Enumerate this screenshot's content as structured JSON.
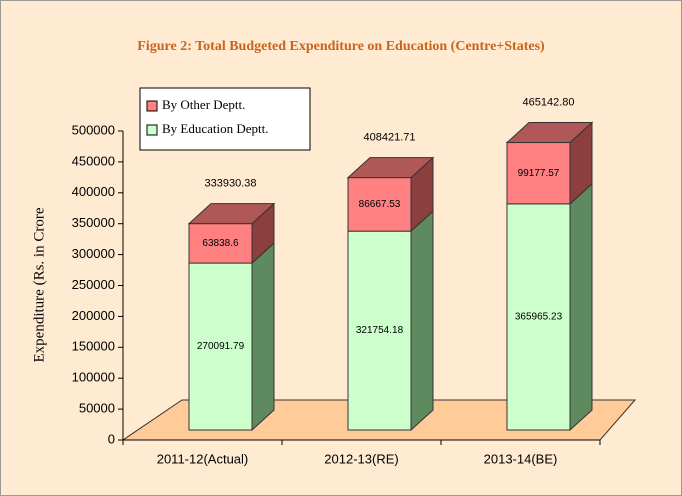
{
  "chart_data": {
    "type": "bar3d-stacked",
    "title": "Figure 2: Total Budgeted Expenditure on Education (Centre+States)",
    "y_label": "Expenditure (Rs. in Crore",
    "categories": [
      "2011-12(Actual)",
      "2012-13(RE)",
      "2013-14(BE)"
    ],
    "series": [
      {
        "name": "By Education Deptt.",
        "color": "#ccffcc",
        "side_color": "#5f8a5f",
        "values": [
          270091.79,
          321754.18,
          365965.23
        ]
      },
      {
        "name": "By Other Deptt.",
        "color": "#ff8080",
        "side_color": "#8b3f3f",
        "values": [
          63838.6,
          86667.53,
          99177.57
        ]
      }
    ],
    "totals": [
      333930.38,
      408421.71,
      465142.8
    ],
    "total_labels": [
      "333930.38",
      "408421.71",
      "465142.80"
    ],
    "ylim": [
      0,
      500000
    ],
    "yticks": [
      0,
      50000,
      100000,
      150000,
      200000,
      250000,
      300000,
      350000,
      400000,
      450000,
      500000
    ],
    "legend": "top-left"
  }
}
